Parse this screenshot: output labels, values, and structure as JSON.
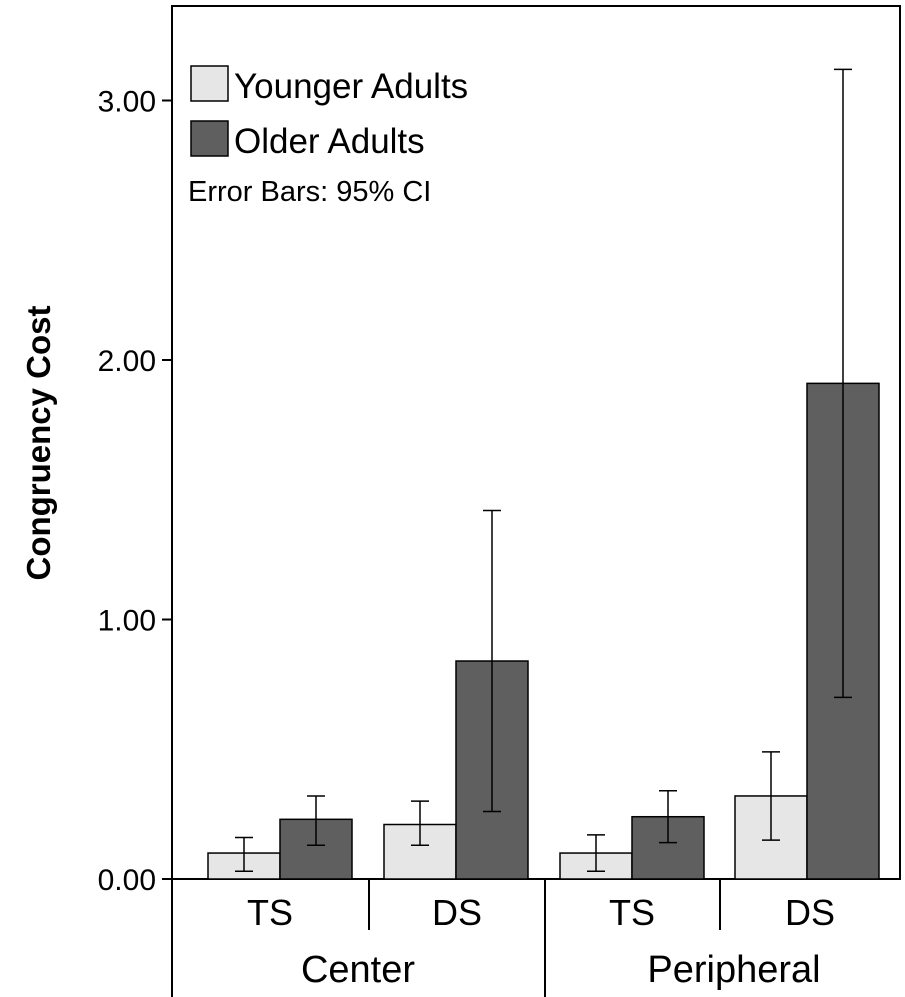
{
  "chart_data": {
    "type": "bar",
    "ylabel": "Congruency Cost",
    "ylim": [
      0,
      3.4
    ],
    "yticks": [
      "0.00",
      "1.00",
      "2.00",
      "3.00"
    ],
    "groups": [
      {
        "label": "Center",
        "categories": [
          "TS",
          "DS"
        ]
      },
      {
        "label": "Peripheral",
        "categories": [
          "TS",
          "DS"
        ]
      }
    ],
    "series": [
      {
        "name": "Younger Adults",
        "color": "#e6e6e6",
        "values": [
          0.1,
          0.21,
          0.1,
          0.32
        ],
        "ci_low": [
          0.03,
          0.13,
          0.03,
          0.15
        ],
        "ci_high": [
          0.16,
          0.3,
          0.17,
          0.49
        ]
      },
      {
        "name": "Older Adults",
        "color": "#5f5f5f",
        "values": [
          0.23,
          0.84,
          0.24,
          1.91
        ],
        "ci_low": [
          0.13,
          0.26,
          0.14,
          0.7
        ],
        "ci_high": [
          0.32,
          1.42,
          0.34,
          3.12
        ]
      }
    ],
    "note": "Error Bars: 95% CI",
    "legend_position": "top-left",
    "grid": false
  }
}
